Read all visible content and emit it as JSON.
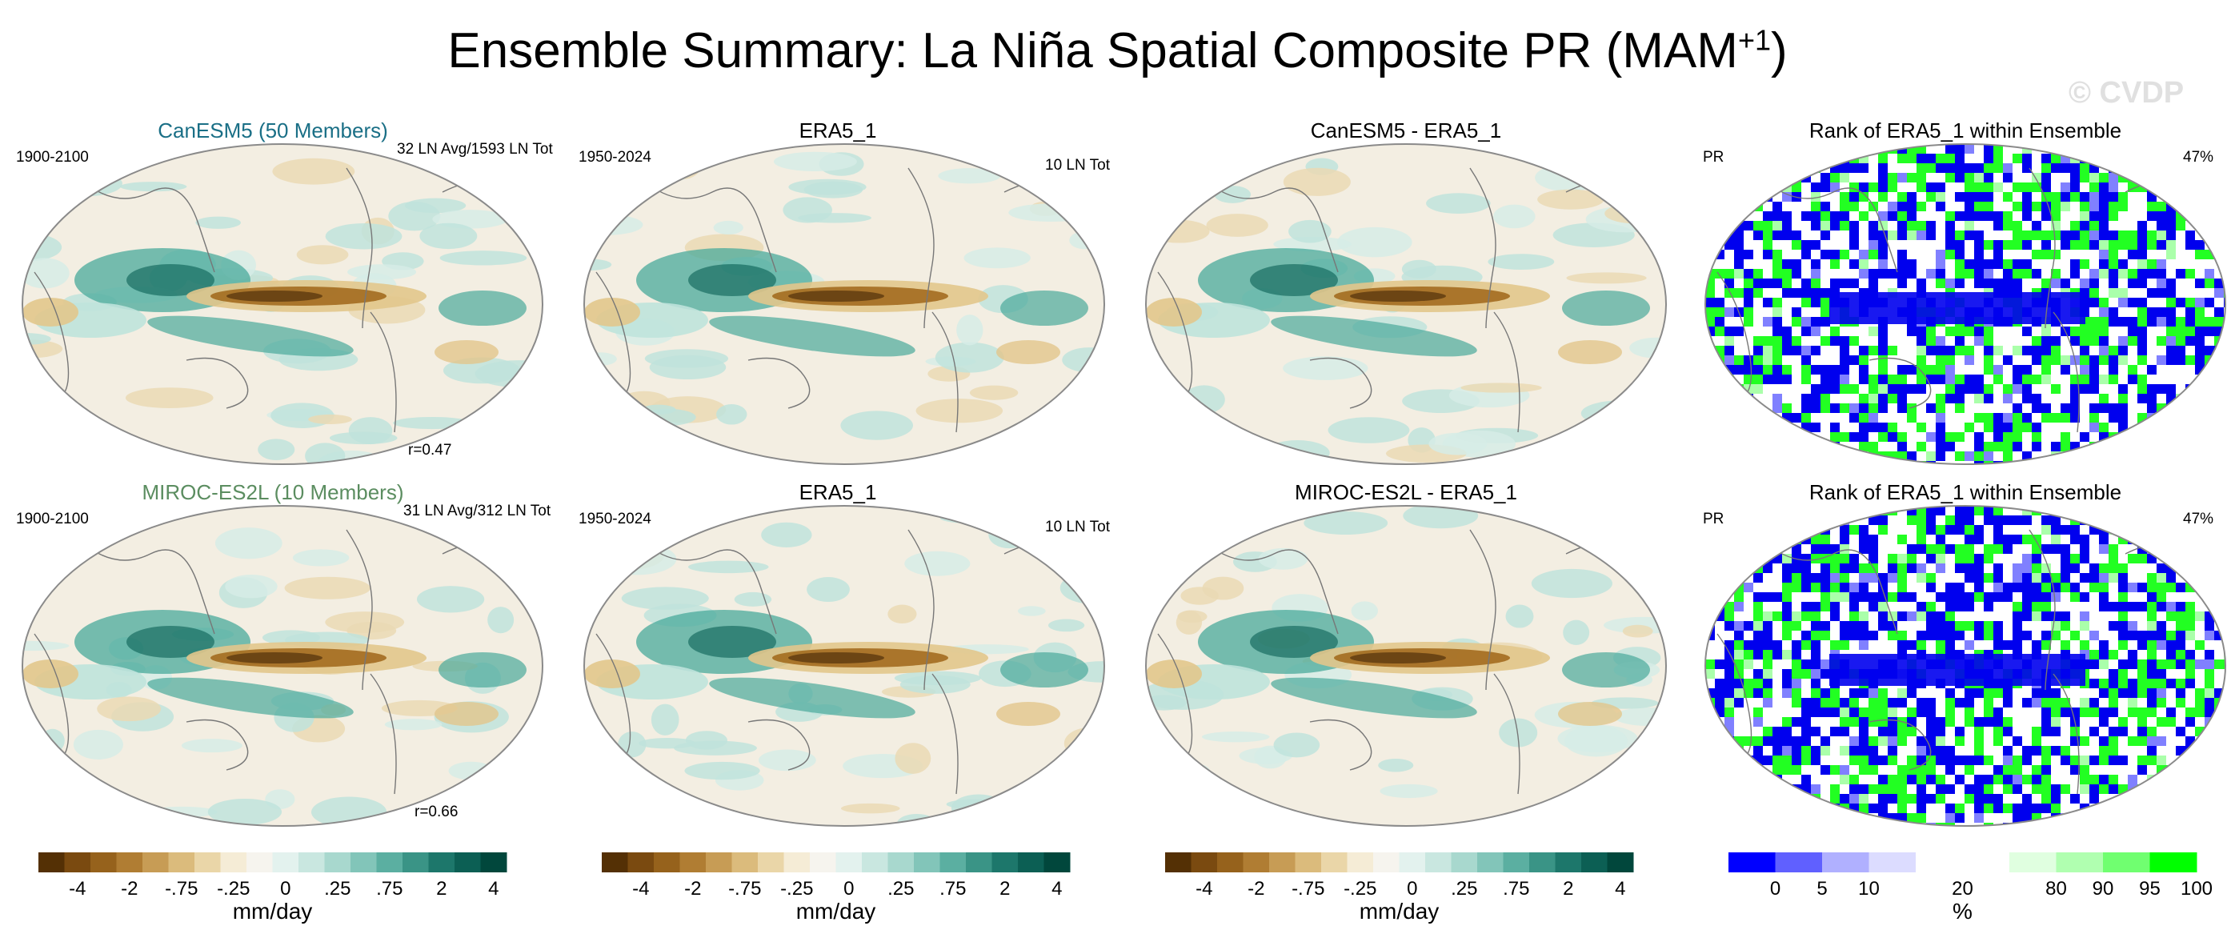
{
  "title_main": "Ensemble Summary: La Niña Spatial Composite PR (MAM",
  "title_sup": "+1",
  "title_close": ")",
  "watermark": "© CVDP",
  "colors": {
    "brown_dark": "#5c3a0f",
    "brown": "#a36b1f",
    "tan": "#e2c68c",
    "neutral": "#f3eee2",
    "teal_light": "#bfe3dc",
    "teal": "#4aa99b",
    "teal_dark": "#00574c",
    "rank_blue": "#0000ee",
    "rank_green": "#22ff22",
    "coast": "#777777"
  },
  "rows": [
    {
      "model_title": "CanESM5 (50 Members)",
      "model_title_color": "#1a6f86",
      "model_period": "1900-2100",
      "model_count": "32 LN Avg/1593 LN Tot",
      "model_corr": "r=0.47",
      "obs_title": "ERA5_1",
      "obs_period": "1950-2024",
      "obs_count": "10 LN Tot",
      "diff_title": "CanESM5 - ERA5_1",
      "rank_title": "Rank of ERA5_1 within Ensemble",
      "rank_var": "PR",
      "rank_pct": "47%"
    },
    {
      "model_title": "MIROC-ES2L (10 Members)",
      "model_title_color": "#5b8d60",
      "model_period": "1900-2100",
      "model_count": "31 LN Avg/312 LN Tot",
      "model_corr": "r=0.66",
      "obs_title": "ERA5_1",
      "obs_period": "1950-2024",
      "obs_count": "10 LN Tot",
      "diff_title": "MIROC-ES2L - ERA5_1",
      "rank_title": "Rank of ERA5_1 within Ensemble",
      "rank_var": "PR",
      "rank_pct": "47%"
    }
  ],
  "colorbar_pr": {
    "colors": [
      "#543005",
      "#7a4a10",
      "#96621c",
      "#b07d33",
      "#c79c55",
      "#dbbb7c",
      "#ead6a8",
      "#f5ecd6",
      "#f6f4ee",
      "#e3f2ee",
      "#c9e7e0",
      "#a8d8ce",
      "#82c5b9",
      "#5bafa1",
      "#3a9486",
      "#1d776b",
      "#0c5f54",
      "#01473c"
    ],
    "ticks": [
      "-4",
      "-2",
      "-.75",
      "-.25",
      "0",
      ".25",
      ".75",
      "2",
      "4"
    ],
    "unit": "mm/day"
  },
  "colorbar_rank": {
    "colors": [
      "#0000ff",
      "#6060ff",
      "#b0b0ff",
      "#dcdcff",
      "#ffffff",
      "#ffffff",
      "#e0ffe0",
      "#b0ffb0",
      "#70ff70",
      "#00ff00"
    ],
    "ticks": [
      "0",
      "5",
      "10",
      "20",
      "80",
      "90",
      "95",
      "100"
    ],
    "unit": "%"
  },
  "chart_data": {
    "type": "heatmap",
    "title": "Ensemble Summary: La Niña Spatial Composite PR (MAM+1)",
    "variable": "PR",
    "units": "mm/day",
    "projection": "Robinson (Pacific-centered)",
    "panels": [
      {
        "row": 1,
        "kind": "model composite",
        "title": "CanESM5 (50 Members)",
        "period": "1900-2100",
        "events": "32 LN Avg/1593 LN Tot",
        "pattern_correlation": 0.47
      },
      {
        "row": 1,
        "kind": "observed composite",
        "title": "ERA5_1",
        "period": "1950-2024",
        "events": "10 LN Tot"
      },
      {
        "row": 1,
        "kind": "difference",
        "title": "CanESM5 - ERA5_1"
      },
      {
        "row": 1,
        "kind": "rank",
        "title": "Rank of ERA5_1 within Ensemble",
        "summary_percent": 47
      },
      {
        "row": 2,
        "kind": "model composite",
        "title": "MIROC-ES2L (10 Members)",
        "period": "1900-2100",
        "events": "31 LN Avg/312 LN Tot",
        "pattern_correlation": 0.66
      },
      {
        "row": 2,
        "kind": "observed composite",
        "title": "ERA5_1",
        "period": "1950-2024",
        "events": "10 LN Tot"
      },
      {
        "row": 2,
        "kind": "difference",
        "title": "MIROC-ES2L - ERA5_1"
      },
      {
        "row": 2,
        "kind": "rank",
        "title": "Rank of ERA5_1 within Ensemble",
        "summary_percent": 47
      }
    ],
    "pr_levels": [
      -4,
      -2,
      -0.75,
      -0.25,
      0,
      0.25,
      0.75,
      2,
      4
    ],
    "rank_levels_percent": [
      0,
      5,
      10,
      20,
      80,
      90,
      95,
      100
    ],
    "colorbar_units": [
      "mm/day",
      "mm/day",
      "mm/day",
      "%"
    ]
  }
}
